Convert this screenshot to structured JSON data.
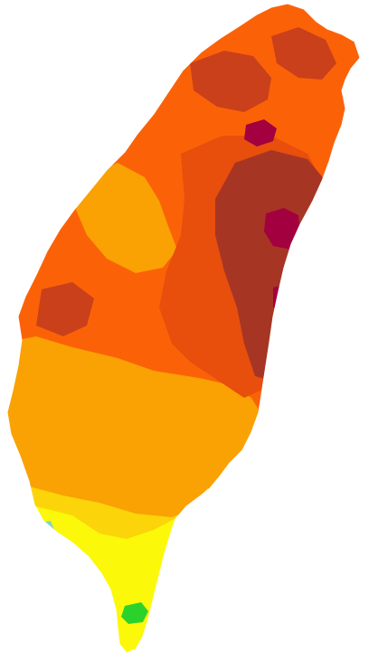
{
  "map": {
    "palette": {
      "yellow": "#fbf80a",
      "yellow_orange": "#fbd40a",
      "orange": "#faa103",
      "orange_red": "#fb6208",
      "red_orange": "#e84e0c",
      "brick": "#c9401a",
      "dark_red": "#a73524",
      "crimson": "#a2003f",
      "green": "#2cd22c",
      "teal": "#7fd6c0"
    },
    "zones": [
      {
        "name": "island-base",
        "color_key": "orange_red"
      },
      {
        "name": "south-orange",
        "color_key": "orange"
      },
      {
        "name": "south-yellow-orange",
        "color_key": "yellow_orange"
      },
      {
        "name": "south-tip-yellow",
        "color_key": "yellow"
      },
      {
        "name": "west-orange-band",
        "color_key": "orange"
      },
      {
        "name": "north-brick-patches",
        "color_key": "brick"
      },
      {
        "name": "central-red-orange",
        "color_key": "red_orange"
      },
      {
        "name": "east-dark-red",
        "color_key": "dark_red"
      },
      {
        "name": "crimson-spots",
        "color_key": "crimson"
      },
      {
        "name": "green-spot",
        "color_key": "green"
      },
      {
        "name": "teal-spot",
        "color_key": "teal"
      }
    ]
  }
}
